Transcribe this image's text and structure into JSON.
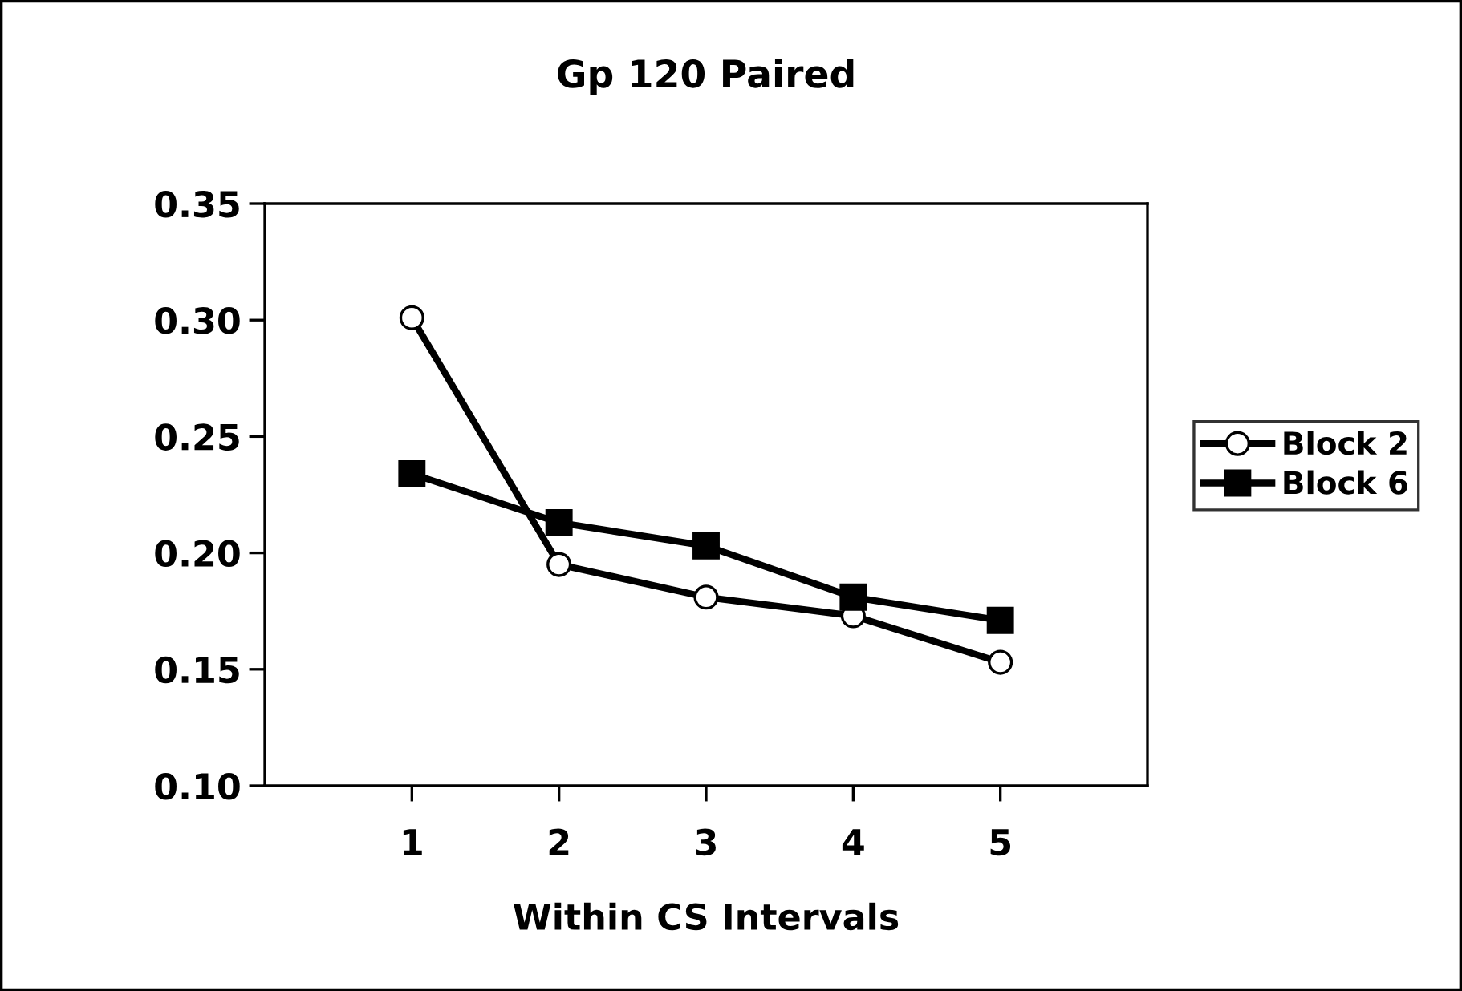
{
  "chart_data": {
    "type": "line",
    "title": "Gp 120 Paired",
    "xlabel": "Within CS Intervals",
    "x": [
      1,
      2,
      3,
      4,
      5
    ],
    "xlim": [
      0,
      6
    ],
    "xticks": [
      1,
      2,
      3,
      4,
      5
    ],
    "ylim": [
      0.1,
      0.35
    ],
    "yticks": [
      {
        "value": 0.1,
        "label": "0.10"
      },
      {
        "value": 0.15,
        "label": "0.15"
      },
      {
        "value": 0.2,
        "label": "0.20"
      },
      {
        "value": 0.25,
        "label": "0.25"
      },
      {
        "value": 0.3,
        "label": "0.30"
      },
      {
        "value": 0.35,
        "label": "0.35"
      }
    ],
    "series": [
      {
        "name": "Block 2",
        "color": "#000000",
        "marker": "circle",
        "values": [
          0.301,
          0.195,
          0.181,
          0.173,
          0.153
        ]
      },
      {
        "name": "Block 6",
        "color": "#000000",
        "marker": "square",
        "values": [
          0.234,
          0.213,
          0.203,
          0.181,
          0.171
        ]
      }
    ],
    "legend": "right",
    "grid": false,
    "line_style": "solid"
  }
}
